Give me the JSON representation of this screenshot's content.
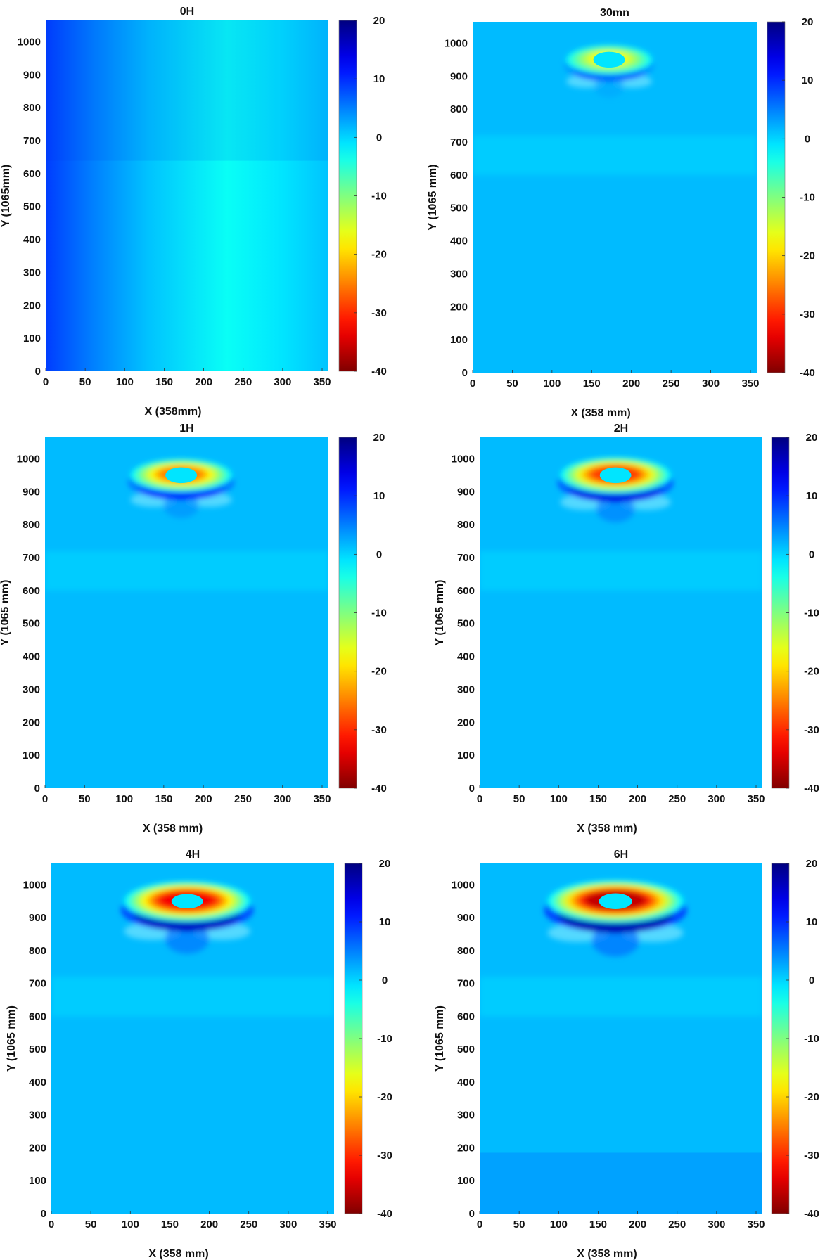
{
  "chart_data": [
    {
      "type": "heatmap",
      "title": "0H",
      "xlabel": "X (358mm)",
      "ylabel": "Y (1065mm)",
      "xlim": [
        0,
        358
      ],
      "ylim": [
        0,
        1065
      ],
      "xticks": [
        "0",
        "50",
        "100",
        "150",
        "200",
        "250",
        "300",
        "350"
      ],
      "yticks": [
        "0",
        "100",
        "200",
        "300",
        "400",
        "500",
        "600",
        "700",
        "800",
        "900",
        "1000"
      ],
      "colorbar": {
        "range": [
          -40,
          20
        ],
        "ticks": [
          "20",
          "10",
          "0",
          "-10",
          "-20",
          "-30",
          "-40"
        ]
      },
      "background": {
        "profile_x": [
          0,
          60,
          130,
          230,
          300,
          358
        ],
        "profile_values": [
          9,
          5,
          1,
          -3,
          -1,
          1
        ]
      },
      "ring": null
    },
    {
      "type": "heatmap",
      "title": "30mn",
      "xlabel": "X (358 mm)",
      "ylabel": "Y (1065 mm)",
      "xlim": [
        0,
        358
      ],
      "ylim": [
        0,
        1065
      ],
      "xticks": [
        "0",
        "50",
        "100",
        "150",
        "200",
        "250",
        "300",
        "350"
      ],
      "yticks": [
        "0",
        "100",
        "200",
        "300",
        "400",
        "500",
        "600",
        "700",
        "800",
        "900",
        "1000"
      ],
      "colorbar": {
        "range": [
          -40,
          20
        ],
        "ticks": [
          "20",
          "10",
          "0",
          "-10",
          "-20",
          "-30",
          "-40"
        ]
      },
      "background": {
        "value": 1.5
      },
      "ring": {
        "center": [
          172,
          950
        ],
        "radius_x": 54,
        "radius_y": 55,
        "hole_x": 20,
        "hole_y": 24,
        "min_value": -17,
        "rim_value": 7
      }
    },
    {
      "type": "heatmap",
      "title": "1H",
      "xlabel": "X (358 mm)",
      "ylabel": "Y (1065 mm)",
      "xlim": [
        0,
        358
      ],
      "ylim": [
        0,
        1065
      ],
      "xticks": [
        "0",
        "50",
        "100",
        "150",
        "200",
        "250",
        "300",
        "350"
      ],
      "yticks": [
        "0",
        "100",
        "200",
        "300",
        "400",
        "500",
        "600",
        "700",
        "800",
        "900",
        "1000"
      ],
      "colorbar": {
        "range": [
          -40,
          20
        ],
        "ticks": [
          "20",
          "10",
          "0",
          "-10",
          "-20",
          "-30",
          "-40"
        ]
      },
      "background": {
        "value": 1.5
      },
      "ring": {
        "center": [
          172,
          950
        ],
        "radius_x": 64,
        "radius_y": 62,
        "hole_x": 20,
        "hole_y": 24,
        "min_value": -25,
        "rim_value": 11
      }
    },
    {
      "type": "heatmap",
      "title": "2H",
      "xlabel": "X (358 mm)",
      "ylabel": "Y (1065 mm)",
      "xlim": [
        0,
        358
      ],
      "ylim": [
        0,
        1065
      ],
      "xticks": [
        "0",
        "50",
        "100",
        "150",
        "200",
        "250",
        "300",
        "350"
      ],
      "yticks": [
        "0",
        "100",
        "200",
        "300",
        "400",
        "500",
        "600",
        "700",
        "800",
        "900",
        "1000"
      ],
      "colorbar": {
        "range": [
          -40,
          20
        ],
        "ticks": [
          "20",
          "10",
          "0",
          "-10",
          "-20",
          "-30",
          "-40"
        ]
      },
      "background": {
        "value": 1.5
      },
      "ring": {
        "center": [
          172,
          950
        ],
        "radius_x": 70,
        "radius_y": 68,
        "hole_x": 20,
        "hole_y": 24,
        "min_value": -29,
        "rim_value": 14
      }
    },
    {
      "type": "heatmap",
      "title": "4H",
      "xlabel": "X (358 mm)",
      "ylabel": "Y (1065 mm)",
      "xlim": [
        0,
        358
      ],
      "ylim": [
        0,
        1065
      ],
      "xticks": [
        "0",
        "50",
        "100",
        "150",
        "200",
        "250",
        "300",
        "350"
      ],
      "yticks": [
        "0",
        "100",
        "200",
        "300",
        "400",
        "500",
        "600",
        "700",
        "800",
        "900",
        "1000"
      ],
      "colorbar": {
        "range": [
          -40,
          20
        ],
        "ticks": [
          "20",
          "10",
          "0",
          "-10",
          "-20",
          "-30",
          "-40"
        ]
      },
      "background": {
        "value": 1.5
      },
      "ring": {
        "center": [
          172,
          950
        ],
        "radius_x": 80,
        "radius_y": 76,
        "hole_x": 20,
        "hole_y": 22,
        "min_value": -33,
        "rim_value": 16
      }
    },
    {
      "type": "heatmap",
      "title": "6H",
      "xlabel": "X (358 mm)",
      "ylabel": "Y (1065 mm)",
      "xlim": [
        0,
        358
      ],
      "ylim": [
        0,
        1065
      ],
      "xticks": [
        "0",
        "50",
        "100",
        "150",
        "200",
        "250",
        "300",
        "350"
      ],
      "yticks": [
        "0",
        "100",
        "200",
        "300",
        "400",
        "500",
        "600",
        "700",
        "800",
        "900",
        "1000"
      ],
      "colorbar": {
        "range": [
          -40,
          20
        ],
        "ticks": [
          "20",
          "10",
          "0",
          "-10",
          "-20",
          "-30",
          "-40"
        ]
      },
      "background": {
        "value": 1.5,
        "lower_band": {
          "y_max": 185,
          "value": 3
        }
      },
      "ring": {
        "center": [
          172,
          950
        ],
        "radius_x": 86,
        "radius_y": 80,
        "hole_x": 21,
        "hole_y": 24,
        "min_value": -36,
        "rim_value": 17
      }
    }
  ]
}
